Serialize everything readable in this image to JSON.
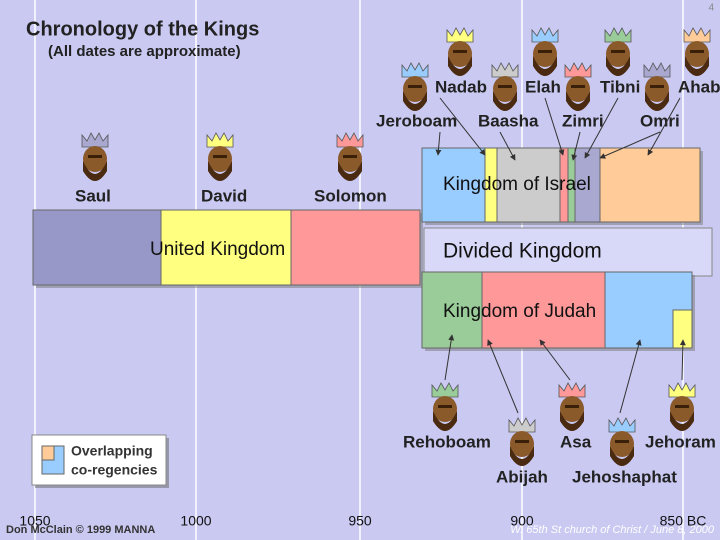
{
  "header": {
    "title": "Chronology of the Kings",
    "subtitle": "(All dates are approximate)",
    "slide": "4"
  },
  "kings": {
    "united": [
      "Saul",
      "David",
      "Solomon"
    ],
    "israel_top": [
      "Nadab",
      "Elah",
      "Tibni",
      "Ahab"
    ],
    "israel_bottom": [
      "Jeroboam",
      "Baasha",
      "Zimri",
      "Omri"
    ],
    "judah_top": [
      "Rehoboam",
      "Asa",
      "Jehoram"
    ],
    "judah_bottom": [
      "Abijah",
      "Jehoshaphat"
    ]
  },
  "bars": {
    "united": "United Kingdom",
    "divided": "Divided Kingdom",
    "israel": "Kingdom of Israel",
    "judah": "Kingdom of Judah"
  },
  "legend": [
    "Overlapping",
    "co-regencies"
  ],
  "axis": [
    "1050",
    "1000",
    "950",
    "900",
    "850 BC"
  ],
  "footer": {
    "left": "Don McClain © 1999 MANNA",
    "right": "W. 65th St church of Christ / June 8, 2000"
  }
}
